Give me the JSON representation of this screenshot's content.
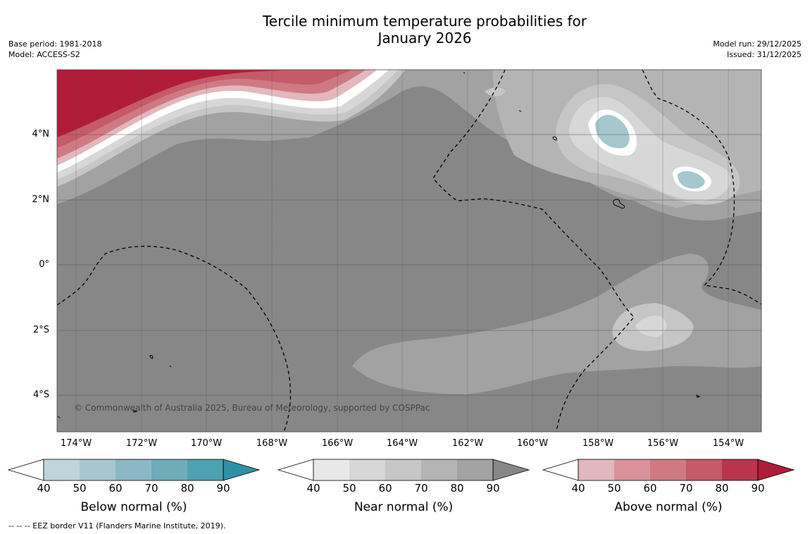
{
  "title_line1": "Tercile minimum temperature probabilities for",
  "title_line2": "January 2026",
  "base_period": "Base period: 1981-2018",
  "model": "Model: ACCESS-S2",
  "model_run": "Model run: 29/12/2025",
  "issued": "Issued: 31/12/2025",
  "copyright": "© Commonwealth of Australia 2025, Bureau of Meteorology, supported by COSPPac",
  "footer": "--  --  -- EEZ border V11 (Flanders Marine Institute, 2019).",
  "lat_labels": [
    "4°N",
    "2°N",
    "0°",
    "2°S",
    "4°S"
  ],
  "lon_labels": [
    "174°W",
    "172°W",
    "170°W",
    "168°W",
    "166°W",
    "164°W",
    "162°W",
    "160°W",
    "158°W",
    "156°W",
    "154°W"
  ],
  "legends": [
    {
      "label": "Below normal (%)",
      "ticks": [
        "40",
        "50",
        "60",
        "70",
        "80",
        "90"
      ],
      "colors": [
        "#ffffff",
        "#bed5dc",
        "#a6c7cd",
        "#8bb8c4",
        "#6eacba",
        "#4ea1b1",
        "#2e91a6"
      ]
    },
    {
      "label": "Near normal (%)",
      "ticks": [
        "40",
        "50",
        "60",
        "70",
        "80",
        "90"
      ],
      "colors": [
        "#ffffff",
        "#e8e8e8",
        "#d7d7d7",
        "#c6c6c6",
        "#b4b4b4",
        "#a2a2a2",
        "#878787"
      ]
    },
    {
      "label": "Above normal (%)",
      "ticks": [
        "40",
        "50",
        "60",
        "70",
        "80",
        "90"
      ],
      "colors": [
        "#ffffff",
        "#e2b7bd",
        "#d9929a",
        "#cf7a82",
        "#c55a68",
        "#ba3450",
        "#b01c38"
      ]
    }
  ]
}
